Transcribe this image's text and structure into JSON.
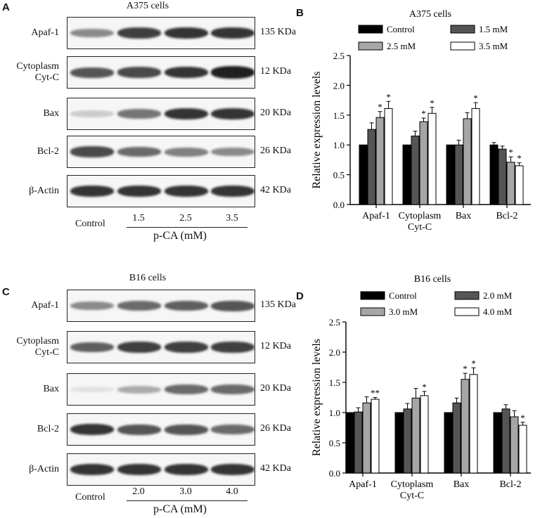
{
  "panels": {
    "A": {
      "letter": "A",
      "title": "A375 cells",
      "rows": [
        {
          "label": "Apaf-1",
          "kda": "135 KDa",
          "intensity": [
            0.45,
            0.8,
            0.85,
            0.85
          ]
        },
        {
          "label": "Cytoplasm\nCyt-C",
          "kda": "12 KDa",
          "intensity": [
            0.7,
            0.75,
            0.85,
            0.95
          ]
        },
        {
          "label": "Bax",
          "kda": "20 KDa",
          "intensity": [
            0.15,
            0.55,
            0.85,
            0.85
          ]
        },
        {
          "label": "Bcl-2",
          "kda": "26 KDa",
          "intensity": [
            0.75,
            0.6,
            0.5,
            0.45
          ]
        },
        {
          "label": "β-Actin",
          "kda": "42 KDa",
          "intensity": [
            0.85,
            0.85,
            0.85,
            0.85
          ]
        }
      ],
      "control_label": "Control",
      "lanes": [
        "1.5",
        "2.5",
        "3.5"
      ],
      "treatment": "p-CA (mM)"
    },
    "C": {
      "letter": "C",
      "title": "B16 cells",
      "rows": [
        {
          "label": "Apaf-1",
          "kda": "135 KDa",
          "intensity": [
            0.45,
            0.6,
            0.65,
            0.7
          ]
        },
        {
          "label": "Cytoplasm\nCyt-C",
          "kda": "12 KDa",
          "intensity": [
            0.65,
            0.8,
            0.8,
            0.8
          ]
        },
        {
          "label": "Bax",
          "kda": "20 KDa",
          "intensity": [
            0.05,
            0.3,
            0.6,
            0.6
          ]
        },
        {
          "label": "Bcl-2",
          "kda": "26 KDa",
          "intensity": [
            0.85,
            0.7,
            0.7,
            0.6
          ]
        },
        {
          "label": "β-Actin",
          "kda": "42 KDa",
          "intensity": [
            0.85,
            0.85,
            0.85,
            0.85
          ]
        }
      ],
      "control_label": "Control",
      "lanes": [
        "2.0",
        "3.0",
        "4.0"
      ],
      "treatment": "p-CA (mM)"
    }
  },
  "chart_data": [
    {
      "panel": "B",
      "type": "bar",
      "title": "A375 cells",
      "ylabel": "Relative expression levels",
      "ylim": [
        0,
        2.5
      ],
      "yticks": [
        "0.0",
        "0.5",
        "1.0",
        "1.5",
        "2.0",
        "2.5"
      ],
      "categories": [
        "Apaf-1",
        "Cytoplasm\nCyt-C",
        "Bax",
        "Bcl-2"
      ],
      "series": [
        {
          "name": "Control",
          "color": "#000000",
          "values": [
            1.0,
            1.0,
            1.0,
            1.0
          ],
          "errors": [
            0,
            0,
            0,
            0.04
          ],
          "stars": [
            "",
            "",
            "",
            ""
          ]
        },
        {
          "name": "1.5 mM",
          "color": "#555555",
          "values": [
            1.26,
            1.15,
            1.0,
            0.93
          ],
          "errors": [
            0.11,
            0.08,
            0.08,
            0.05
          ],
          "stars": [
            "",
            "",
            "",
            ""
          ]
        },
        {
          "name": "2.5 mM",
          "color": "#a6a6a6",
          "values": [
            1.46,
            1.39,
            1.44,
            0.71
          ],
          "errors": [
            0.1,
            0.06,
            0.1,
            0.09
          ],
          "stars": [
            "*",
            "*",
            "",
            "*"
          ]
        },
        {
          "name": "3.5 mM",
          "color": "#ffffff",
          "values": [
            1.61,
            1.53,
            1.61,
            0.65
          ],
          "errors": [
            0.12,
            0.1,
            0.1,
            0.05
          ],
          "stars": [
            "*",
            "*",
            "*",
            "*"
          ]
        }
      ]
    },
    {
      "panel": "D",
      "type": "bar",
      "title": "B16 cells",
      "ylabel": "Relative expression levels",
      "ylim": [
        0,
        2.5
      ],
      "yticks": [
        "0.0",
        "0.5",
        "1.0",
        "1.5",
        "2.0",
        "2.5"
      ],
      "categories": [
        "Apaf-1",
        "Cytoplasm\nCyt-C",
        "Bax",
        "Bcl-2"
      ],
      "series": [
        {
          "name": "Control",
          "color": "#000000",
          "values": [
            1.0,
            1.0,
            1.0,
            1.0
          ],
          "errors": [
            0,
            0,
            0,
            0
          ],
          "stars": [
            "",
            "",
            "",
            ""
          ]
        },
        {
          "name": "2.0 mM",
          "color": "#555555",
          "values": [
            1.01,
            1.06,
            1.16,
            1.06
          ],
          "errors": [
            0.07,
            0.09,
            0.08,
            0.07
          ],
          "stars": [
            "",
            "",
            "",
            ""
          ]
        },
        {
          "name": "3.0 mM",
          "color": "#a6a6a6",
          "values": [
            1.16,
            1.24,
            1.55,
            0.93
          ],
          "errors": [
            0.1,
            0.16,
            0.1,
            0.1
          ],
          "stars": [
            "",
            "",
            "*",
            ""
          ]
        },
        {
          "name": "4.0 mM",
          "color": "#ffffff",
          "values": [
            1.22,
            1.28,
            1.63,
            0.79
          ],
          "errors": [
            0.03,
            0.07,
            0.11,
            0.05
          ],
          "stars": [
            "**",
            "*",
            "*",
            "*"
          ]
        }
      ]
    }
  ]
}
